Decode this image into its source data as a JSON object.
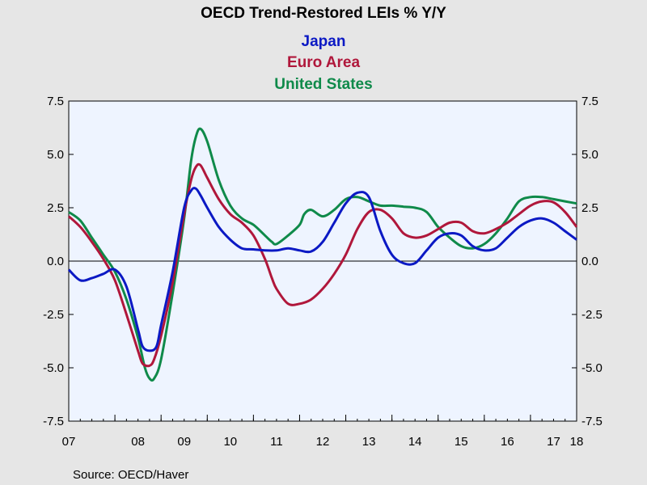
{
  "chart_data": {
    "type": "line",
    "title": "OECD Trend-Restored LEIs % Y/Y",
    "source": "Source:  OECD/Haver",
    "x_start": 2007.0,
    "x_end": 2018.0,
    "x_tick_labels": [
      "07",
      "08",
      "09",
      "10",
      "11",
      "12",
      "13",
      "14",
      "15",
      "16",
      "17",
      "18"
    ],
    "ylim": [
      -7.5,
      7.5
    ],
    "y_ticks": [
      7.5,
      5.0,
      2.5,
      0.0,
      -2.5,
      -5.0,
      -7.5
    ],
    "y_tick_labels": [
      "7.5",
      "5.0",
      "2.5",
      "0.0",
      "-2.5",
      "-5.0",
      "-7.5"
    ],
    "background_color": "#eef4ff",
    "zero_line": true,
    "series": [
      {
        "name": "United States",
        "color": "#0f8a4a",
        "x": [
          2007.0,
          2007.25,
          2007.5,
          2007.75,
          2008.0,
          2008.25,
          2008.5,
          2008.65,
          2008.75,
          2008.85,
          2009.0,
          2009.25,
          2009.5,
          2009.65,
          2009.75,
          2009.85,
          2010.0,
          2010.25,
          2010.5,
          2010.75,
          2011.0,
          2011.25,
          2011.4,
          2011.5,
          2011.75,
          2012.0,
          2012.1,
          2012.25,
          2012.5,
          2012.75,
          2013.0,
          2013.25,
          2013.5,
          2013.75,
          2014.0,
          2014.25,
          2014.5,
          2014.75,
          2015.0,
          2015.25,
          2015.5,
          2015.75,
          2016.0,
          2016.25,
          2016.5,
          2016.75,
          2017.0,
          2017.25,
          2017.5,
          2017.75,
          2018.0
        ],
        "y": [
          2.3,
          1.9,
          1.1,
          0.3,
          -0.5,
          -1.8,
          -3.6,
          -5.0,
          -5.5,
          -5.5,
          -4.6,
          -1.5,
          2.0,
          4.7,
          5.8,
          6.2,
          5.6,
          3.8,
          2.6,
          2.0,
          1.7,
          1.2,
          0.9,
          0.8,
          1.2,
          1.7,
          2.2,
          2.4,
          2.1,
          2.4,
          2.9,
          3.0,
          2.8,
          2.6,
          2.6,
          2.55,
          2.5,
          2.3,
          1.6,
          1.1,
          0.7,
          0.6,
          0.8,
          1.3,
          2.0,
          2.8,
          3.0,
          3.0,
          2.9,
          2.8,
          2.7
        ]
      },
      {
        "name": "Euro Area",
        "color": "#b0173b",
        "x": [
          2007.0,
          2007.25,
          2007.5,
          2007.75,
          2008.0,
          2008.25,
          2008.5,
          2008.6,
          2008.75,
          2008.85,
          2009.0,
          2009.25,
          2009.5,
          2009.65,
          2009.75,
          2009.85,
          2010.0,
          2010.25,
          2010.5,
          2010.75,
          2011.0,
          2011.25,
          2011.4,
          2011.5,
          2011.75,
          2012.0,
          2012.25,
          2012.5,
          2012.75,
          2013.0,
          2013.25,
          2013.5,
          2013.75,
          2014.0,
          2014.25,
          2014.5,
          2014.75,
          2015.0,
          2015.25,
          2015.5,
          2015.75,
          2016.0,
          2016.25,
          2016.5,
          2016.75,
          2017.0,
          2017.25,
          2017.5,
          2017.75,
          2018.0
        ],
        "y": [
          2.1,
          1.6,
          0.9,
          0.1,
          -0.9,
          -2.5,
          -4.2,
          -4.8,
          -4.9,
          -4.6,
          -3.5,
          -1.0,
          2.2,
          3.8,
          4.4,
          4.5,
          3.9,
          2.9,
          2.2,
          1.8,
          1.2,
          0.1,
          -0.8,
          -1.3,
          -2.0,
          -2.0,
          -1.8,
          -1.3,
          -0.6,
          0.3,
          1.5,
          2.3,
          2.4,
          2.0,
          1.3,
          1.1,
          1.2,
          1.5,
          1.8,
          1.8,
          1.4,
          1.3,
          1.5,
          1.8,
          2.2,
          2.6,
          2.8,
          2.75,
          2.3,
          1.6
        ],
        "_x_note": "Euro x values listed below are aligned index-for-index with y",
        "x_aligned": true
      },
      {
        "name": "Japan",
        "color": "#0b19c4",
        "x": [
          2007.0,
          2007.25,
          2007.5,
          2007.75,
          2008.0,
          2008.25,
          2008.5,
          2008.6,
          2008.75,
          2008.9,
          2009.0,
          2009.25,
          2009.5,
          2009.65,
          2009.75,
          2009.85,
          2010.0,
          2010.25,
          2010.5,
          2010.75,
          2011.0,
          2011.25,
          2011.5,
          2011.75,
          2012.0,
          2012.25,
          2012.5,
          2012.75,
          2013.0,
          2013.25,
          2013.5,
          2013.75,
          2014.0,
          2014.25,
          2014.5,
          2014.75,
          2015.0,
          2015.25,
          2015.5,
          2015.75,
          2016.0,
          2016.25,
          2016.5,
          2016.75,
          2017.0,
          2017.25,
          2017.5,
          2017.75,
          2018.0
        ],
        "y": [
          -0.4,
          -0.9,
          -0.8,
          -0.6,
          -0.4,
          -1.2,
          -3.2,
          -4.0,
          -4.2,
          -4.0,
          -3.0,
          -0.5,
          2.5,
          3.3,
          3.4,
          3.1,
          2.5,
          1.6,
          1.0,
          0.6,
          0.55,
          0.5,
          0.5,
          0.6,
          0.5,
          0.45,
          0.9,
          1.8,
          2.7,
          3.2,
          3.0,
          1.4,
          0.3,
          -0.1,
          -0.1,
          0.5,
          1.1,
          1.3,
          1.2,
          0.7,
          0.5,
          0.6,
          1.1,
          1.6,
          1.9,
          2.0,
          1.8,
          1.4,
          1.0
        ]
      }
    ]
  }
}
